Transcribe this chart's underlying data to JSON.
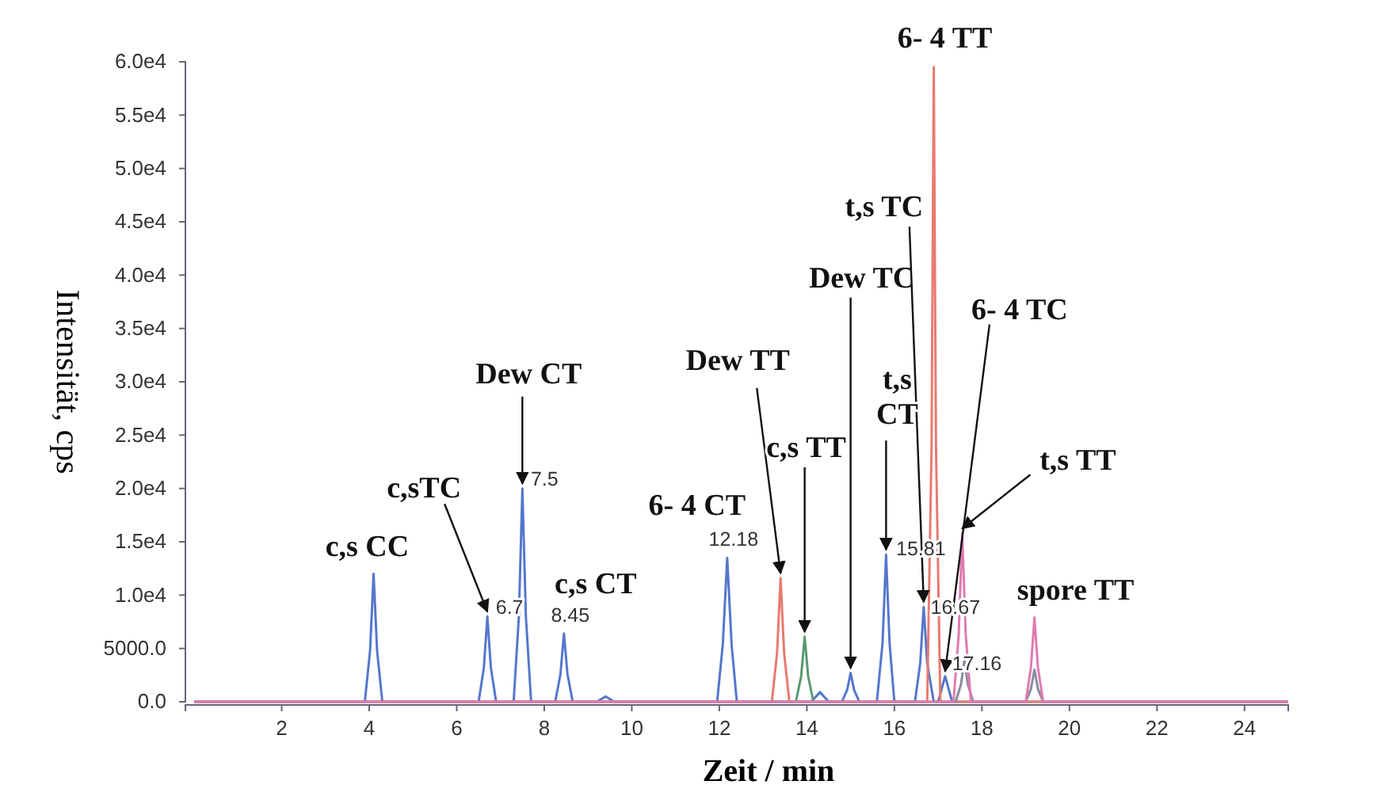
{
  "chart_data": {
    "type": "line",
    "xlabel": "Zeit / min",
    "ylabel": "Intensität, cps",
    "xlim": [
      -0.2,
      25
    ],
    "ylim": [
      0,
      60000
    ],
    "xticks": [
      2,
      4,
      6,
      8,
      10,
      12,
      14,
      16,
      18,
      20,
      22,
      24
    ],
    "yticks": [
      {
        "value": 0,
        "label": "0.0"
      },
      {
        "value": 5000,
        "label": "5000.0"
      },
      {
        "value": 10000,
        "label": "1.0e4"
      },
      {
        "value": 15000,
        "label": "1.5e4"
      },
      {
        "value": 20000,
        "label": "2.0e4"
      },
      {
        "value": 25000,
        "label": "2.5e4"
      },
      {
        "value": 30000,
        "label": "3.0e4"
      },
      {
        "value": 35000,
        "label": "3.5e4"
      },
      {
        "value": 40000,
        "label": "4.0e4"
      },
      {
        "value": 45000,
        "label": "4.5e4"
      },
      {
        "value": 50000,
        "label": "5.0e4"
      },
      {
        "value": 55000,
        "label": "5.5e4"
      },
      {
        "value": 60000,
        "label": "6.0e4"
      }
    ],
    "grid": false,
    "marker": "none",
    "line_style": "solid",
    "series": [
      {
        "color": "#5577cc",
        "x": [
          0,
          3.9,
          4.02,
          4.1,
          4.18,
          4.3,
          6.5,
          6.62,
          6.7,
          6.78,
          6.9,
          7.3,
          7.42,
          7.5,
          7.58,
          7.7,
          8.25,
          8.37,
          8.45,
          8.53,
          8.65,
          9.2,
          9.4,
          9.6,
          11.95,
          12.08,
          12.18,
          12.28,
          12.4,
          14.1,
          14.3,
          14.5,
          14.8,
          14.92,
          15.0,
          15.08,
          15.2,
          15.6,
          15.73,
          15.81,
          15.89,
          16.0,
          16.47,
          16.59,
          16.67,
          16.75,
          16.9,
          17.0,
          17.16,
          17.32,
          25
        ],
        "values": [
          0,
          0,
          4800,
          12000,
          4800,
          0,
          0,
          3200,
          8000,
          3200,
          0,
          0,
          8000,
          20000,
          8000,
          0,
          0,
          2600,
          6400,
          2600,
          0,
          0,
          500,
          0,
          0,
          5400,
          13500,
          5400,
          0,
          0,
          900,
          0,
          0,
          1100,
          2700,
          1100,
          0,
          0,
          5500,
          13800,
          5500,
          0,
          0,
          3600,
          8900,
          3600,
          0,
          0,
          2400,
          0,
          0
        ]
      },
      {
        "color": "#e87a70",
        "x": [
          0,
          13.2,
          13.32,
          13.4,
          13.48,
          13.6,
          16.75,
          16.85,
          16.9,
          16.95,
          17.05,
          25
        ],
        "values": [
          0,
          0,
          4600,
          11600,
          4600,
          0,
          0,
          24000,
          59500,
          24000,
          0,
          0
        ]
      },
      {
        "color": "#5a9a70",
        "x": [
          13.75,
          13.87,
          13.95,
          14.03,
          14.15
        ],
        "values": [
          0,
          2400,
          6100,
          2400,
          0
        ]
      },
      {
        "color": "#8a8aa0",
        "x": [
          0,
          17.4,
          17.52,
          17.6,
          17.68,
          17.8,
          19.0,
          19.12,
          19.2,
          19.28,
          19.4,
          25
        ],
        "values": [
          0,
          0,
          1600,
          3900,
          1600,
          0,
          0,
          1200,
          3000,
          1200,
          0,
          0
        ]
      },
      {
        "color": "#e07ab0",
        "x": [
          0,
          17.35,
          17.47,
          17.55,
          17.63,
          17.75,
          19.0,
          19.12,
          19.2,
          19.28,
          19.4,
          25
        ],
        "values": [
          0,
          0,
          6300,
          15800,
          6300,
          0,
          0,
          3200,
          7900,
          3200,
          0,
          0
        ]
      }
    ],
    "annotations": [
      {
        "text": "c,s CC",
        "x": 4.1,
        "y": 12000
      },
      {
        "text": "c,sTC",
        "x": 6.7,
        "y": 8000
      },
      {
        "text": "Dew CT",
        "x": 7.5,
        "y": 20000
      },
      {
        "text": "c,s CT",
        "x": 8.45,
        "y": 6400
      },
      {
        "text": "6- 4 CT",
        "x": 12.18,
        "y": 13500
      },
      {
        "text": "Dew TT",
        "x": 13.4,
        "y": 11600
      },
      {
        "text": "c,s TT",
        "x": 13.95,
        "y": 6100
      },
      {
        "text": "Dew TC",
        "x": 15.0,
        "y": 2700
      },
      {
        "text": "t,s TC",
        "x": 16.67,
        "y": 8900
      },
      {
        "text": "t,s\nCT",
        "x": 15.81,
        "y": 13800
      },
      {
        "text": "6- 4 TC",
        "x": 17.16,
        "y": 2400
      },
      {
        "text": "t,s TT",
        "x": 17.55,
        "y": 15800
      },
      {
        "text": "spore TT",
        "x": 19.2,
        "y": 7900
      },
      {
        "text": "6- 4 TT",
        "x": 16.9,
        "y": 59500
      },
      {
        "text": "7.5",
        "x": 7.5,
        "y": 20000
      },
      {
        "text": "6.7",
        "x": 6.7,
        "y": 8000
      },
      {
        "text": "8.45",
        "x": 8.45,
        "y": 6400
      },
      {
        "text": "12.18",
        "x": 12.18,
        "y": 13500
      },
      {
        "text": "15.81",
        "x": 15.81,
        "y": 13800
      },
      {
        "text": "16.67",
        "x": 16.67,
        "y": 8900
      },
      {
        "text": "17.16",
        "x": 17.16,
        "y": 2400
      }
    ]
  }
}
